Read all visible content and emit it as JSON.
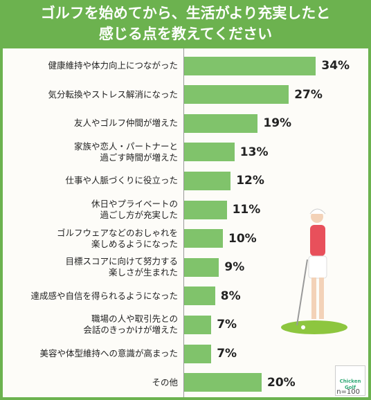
{
  "chart_data": {
    "type": "bar",
    "orientation": "horizontal",
    "title": "ゴルフを始めてから、生活がより充実したと\n感じる点を教えてください",
    "categories": [
      "健康維持や体力向上につながった",
      "気分転換やストレス解消になった",
      "友人やゴルフ仲間が増えた",
      "家族や恋人・パートナーと\n過ごす時間が増えた",
      "仕事や人脈づくりに役立った",
      "休日やプライベートの\n過ごし方が充実した",
      "ゴルフウェアなどのおしゃれを\n楽しめるようになった",
      "目標スコアに向けて努力する\n楽しさが生まれた",
      "達成感や自信を得られるようになった",
      "職場の人や取引先との\n会話のきっかけが増えた",
      "美容や体型維持への意識が高まった",
      "その他"
    ],
    "values": [
      34,
      27,
      19,
      13,
      12,
      11,
      10,
      9,
      8,
      7,
      7,
      20
    ],
    "value_labels": [
      "34%",
      "27%",
      "19%",
      "13%",
      "12%",
      "11%",
      "10%",
      "9%",
      "8%",
      "7%",
      "7%",
      "20%"
    ],
    "color": "#80c36b",
    "note": "n=100",
    "logo": "Chicken\nGolf"
  }
}
